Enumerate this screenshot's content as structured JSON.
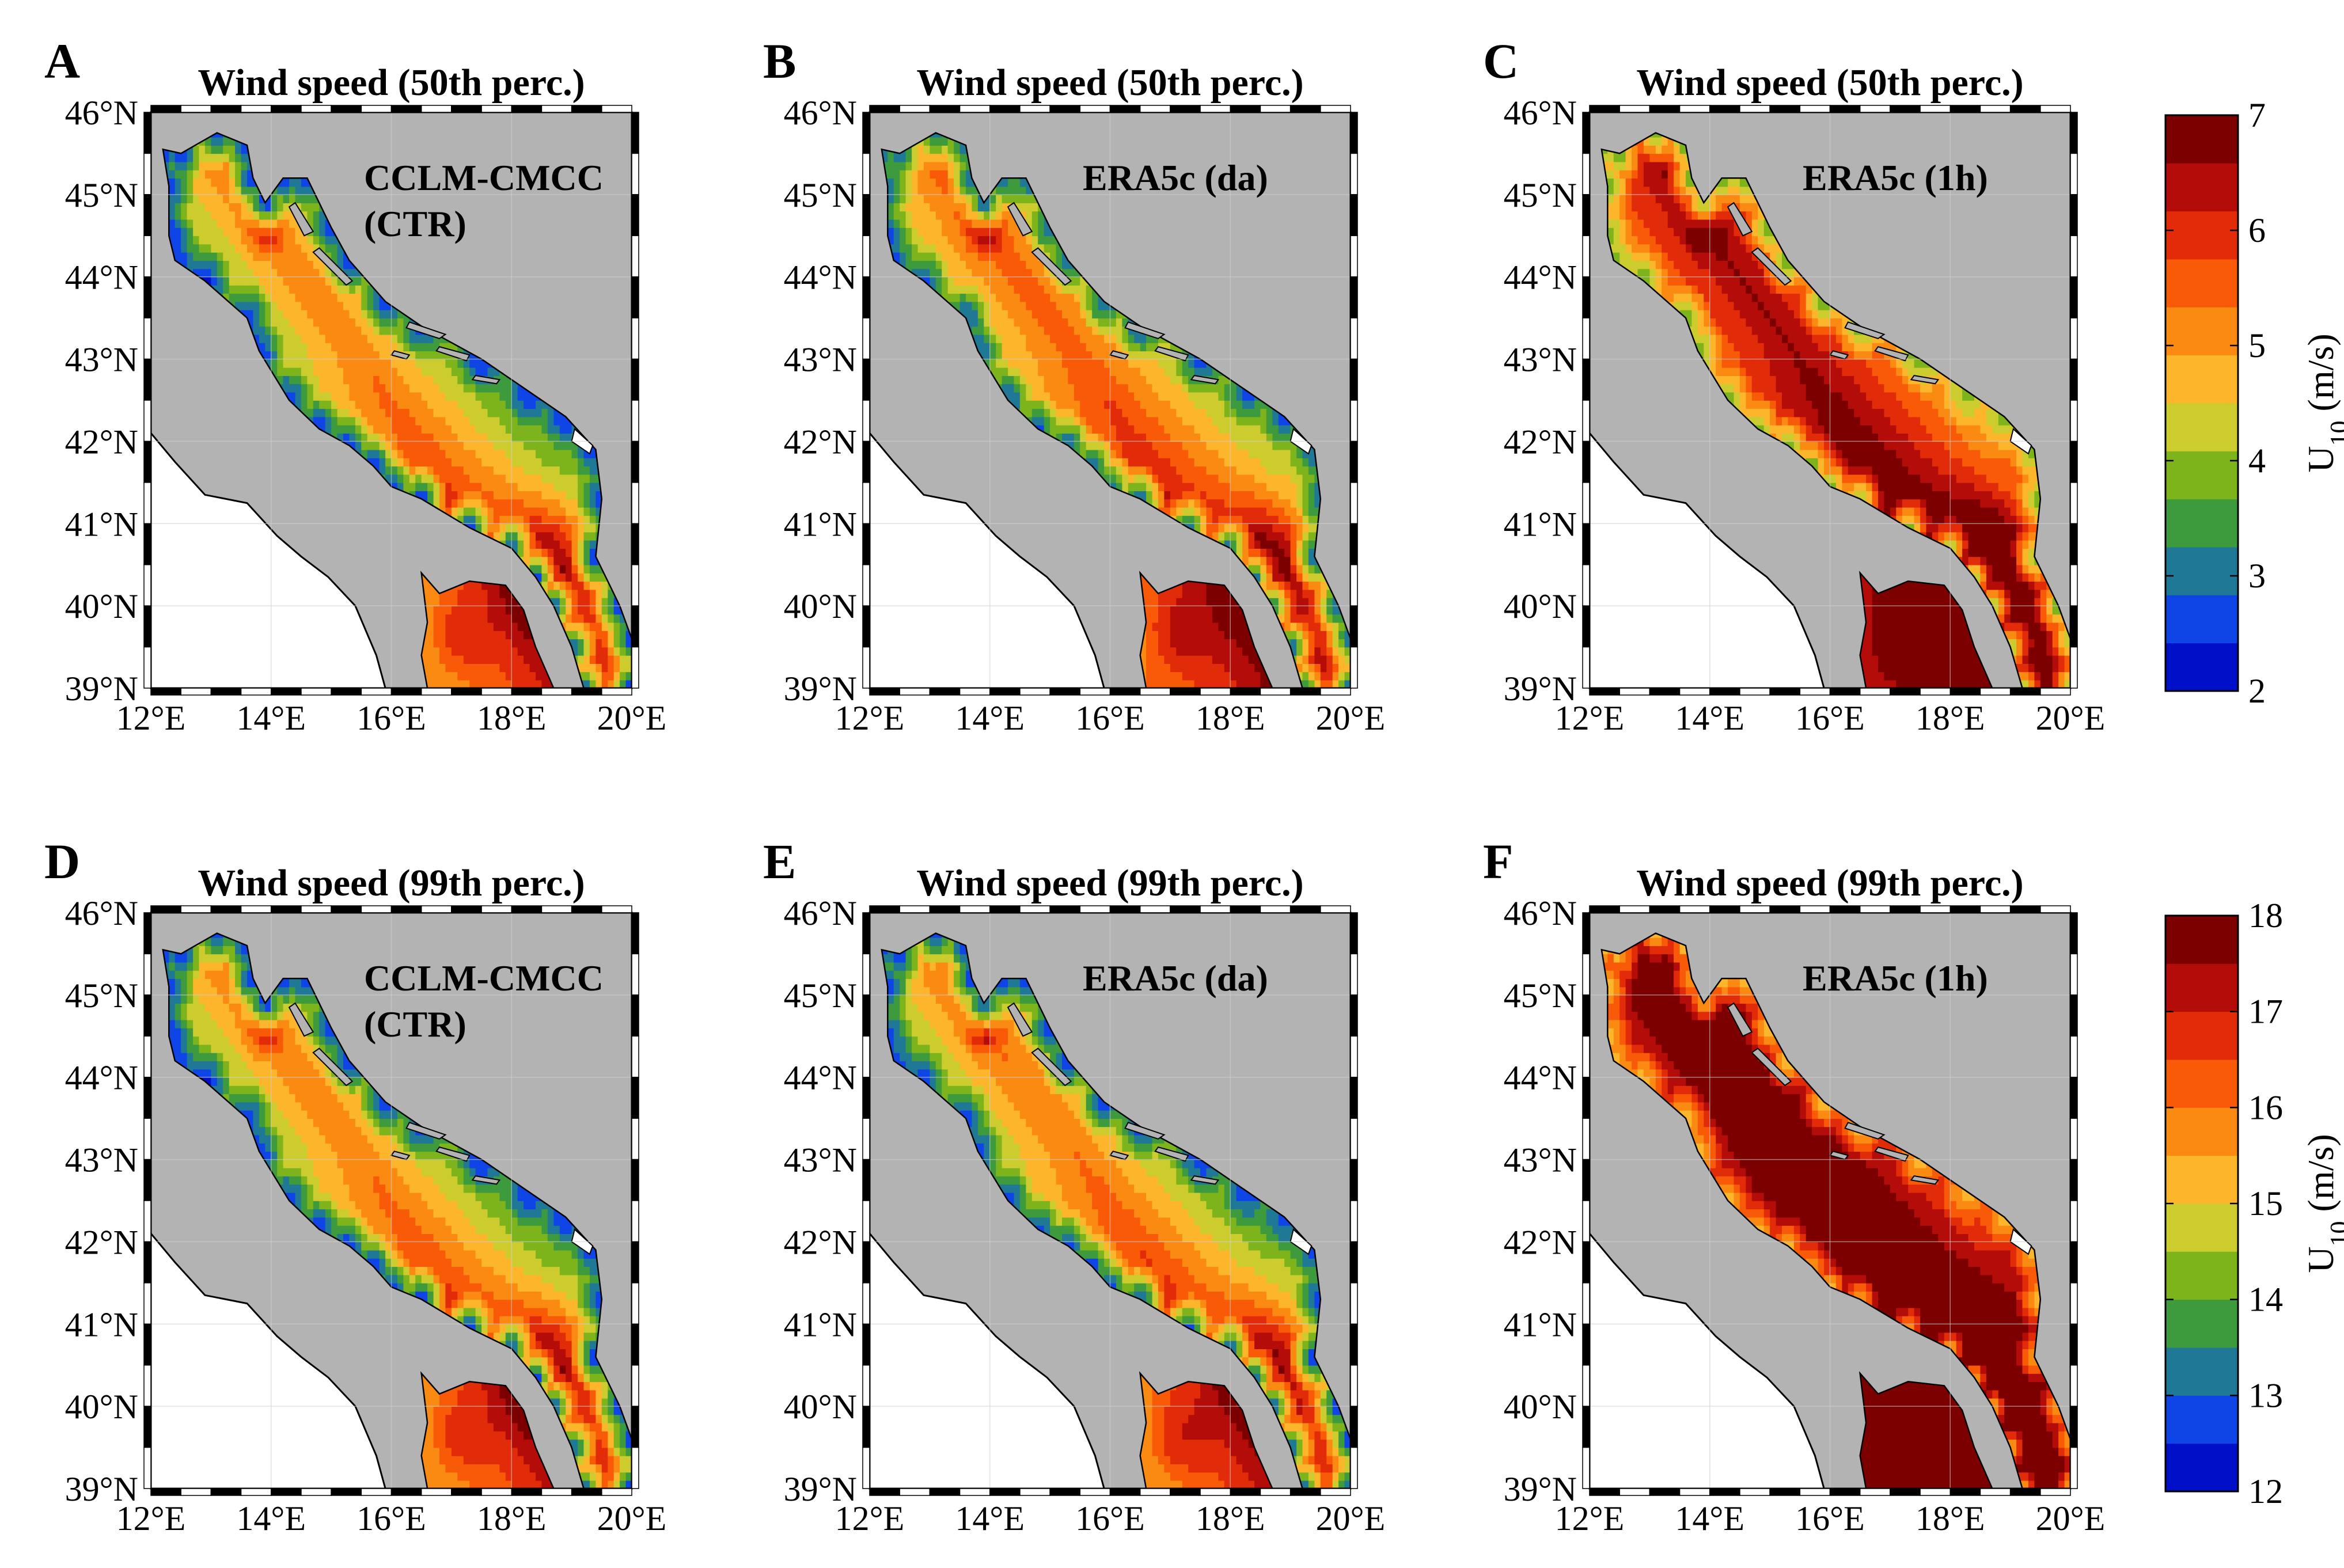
{
  "figure": {
    "panels": [
      {
        "letter": "A",
        "title": "Wind speed (50th perc.)",
        "model_lines": [
          "CCLM-CMCC",
          "(CTR)"
        ],
        "row": 0,
        "col": 0,
        "scale": "p50",
        "intensity": 0.0
      },
      {
        "letter": "B",
        "title": "Wind speed (50th perc.)",
        "model_lines": [
          "ERA5c (da)"
        ],
        "row": 0,
        "col": 1,
        "scale": "p50",
        "intensity": 0.35
      },
      {
        "letter": "C",
        "title": "Wind speed (50th perc.)",
        "model_lines": [
          "ERA5c (1h)"
        ],
        "row": 0,
        "col": 2,
        "scale": "p50",
        "intensity": 1.4
      },
      {
        "letter": "D",
        "title": "Wind speed (99th perc.)",
        "model_lines": [
          "CCLM-CMCC",
          "(CTR)"
        ],
        "row": 1,
        "col": 0,
        "scale": "p99",
        "intensity": 0.0
      },
      {
        "letter": "E",
        "title": "Wind speed (99th perc.)",
        "model_lines": [
          "ERA5c (da)"
        ],
        "row": 1,
        "col": 1,
        "scale": "p99",
        "intensity": 0.1
      },
      {
        "letter": "F",
        "title": "Wind speed (99th perc.)",
        "model_lines": [
          "ERA5c (1h)"
        ],
        "row": 1,
        "col": 2,
        "scale": "p99",
        "intensity": 2.3
      }
    ],
    "lat_ticks": [
      "39°N",
      "40°N",
      "41°N",
      "42°N",
      "43°N",
      "44°N",
      "45°N",
      "46°N"
    ],
    "lon_ticks": [
      "12°E",
      "14°E",
      "16°E",
      "18°E",
      "20°E"
    ],
    "lat_range": [
      39,
      46
    ],
    "lon_range": [
      12,
      20
    ],
    "colorbars": [
      {
        "id": "p50",
        "min": 2,
        "max": 7,
        "ticks": [
          "2",
          "3",
          "4",
          "5",
          "6",
          "7"
        ],
        "label_main": "U",
        "label_sub": "10",
        "label_unit": " (m/s)"
      },
      {
        "id": "p99",
        "min": 12,
        "max": 18,
        "ticks": [
          "12",
          "13",
          "14",
          "15",
          "16",
          "17",
          "18"
        ],
        "label_main": "U",
        "label_sub": "10",
        "label_unit": " (m/s)"
      }
    ],
    "colors": {
      "land": "#b3b3b3",
      "outside": "#ffffff",
      "levels": [
        "#0010c8",
        "#0f44e6",
        "#1e7896",
        "#3d9b3d",
        "#7db41c",
        "#cdcc2e",
        "#fdb52b",
        "#fb8a12",
        "#f95a08",
        "#e22b08",
        "#b40c08",
        "#7c0000"
      ]
    }
  }
}
